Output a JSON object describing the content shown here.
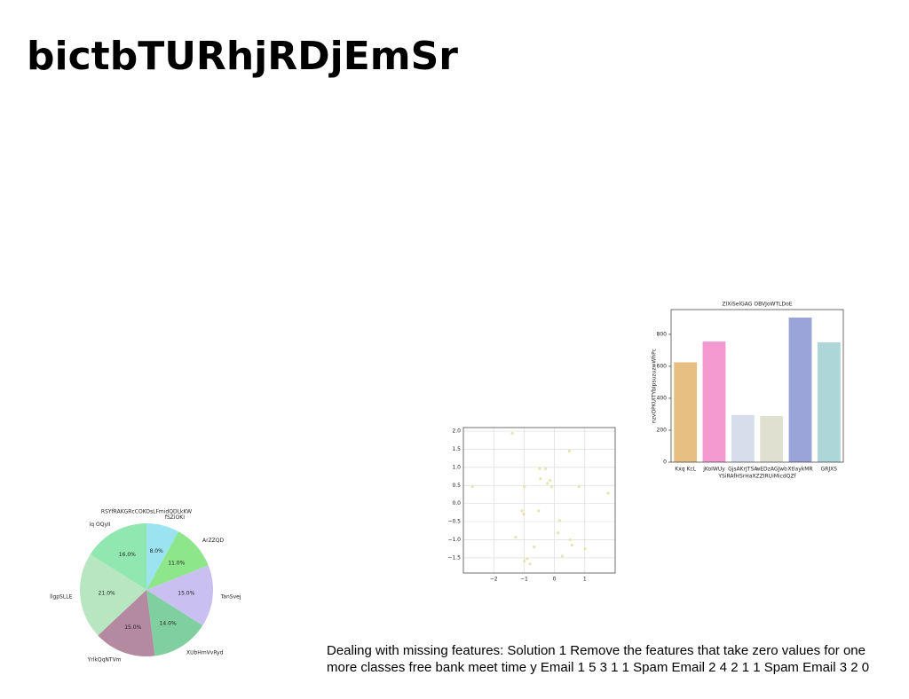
{
  "title": "bictbTURhjRDjEmSr",
  "chart_data": [
    {
      "type": "pie",
      "title": "RSYfRAKGRcCOKOsLFmidQDLkKW",
      "categories": [
        "fSZiOKI",
        "ArZZQD",
        "TanSvej",
        "XUbHmVvRyd",
        "YrlkQqNTVm",
        "llgpSLLE",
        "iq OQyII"
      ],
      "values": [
        8.0,
        11.0,
        15.0,
        14.0,
        15.0,
        21.0,
        16.0
      ],
      "value_labels": [
        "8.0%",
        "11.0%",
        "15.0%",
        "14.0%",
        "15.0%",
        "21.0%",
        "16.0%"
      ],
      "colors": [
        "#9be3f0",
        "#8ee68a",
        "#c9bff0",
        "#80cfa0",
        "#b48aa0",
        "#b8e6c0",
        "#90e8b0"
      ]
    },
    {
      "type": "scatter",
      "color": "#e6e4b0",
      "grid": true,
      "x": [
        -2.7,
        -1.39,
        -0.99,
        -0.49,
        -0.29,
        -0.46,
        -0.23,
        -0.14,
        -0.09,
        0.49,
        0.81,
        1.77,
        -1.07,
        -1.01,
        -0.52,
        0.17,
        -1.28,
        -0.67,
        0.12,
        0.52,
        0.58,
        1.01,
        -0.9,
        -0.81,
        -0.99,
        0.26
      ],
      "y": [
        0.47,
        1.94,
        0.47,
        0.96,
        0.96,
        0.69,
        0.56,
        0.64,
        0.47,
        1.45,
        0.47,
        0.29,
        -0.2,
        -0.29,
        -0.2,
        -0.47,
        -0.93,
        -1.2,
        -0.81,
        -1.0,
        -1.15,
        -1.25,
        -1.52,
        -1.67,
        -1.59,
        -1.45
      ],
      "xlim": [
        -3,
        2
      ],
      "ylim": [
        -1.92,
        2.1
      ],
      "xticks": [
        {
          "value": -2,
          "label": "−2"
        },
        {
          "value": -1,
          "label": "−1"
        },
        0,
        1
      ],
      "yticks": [
        {
          "value": 2.0,
          "label": "2.0"
        },
        {
          "value": 1.5,
          "label": "1.5"
        },
        {
          "value": 1.0,
          "label": "1.0"
        },
        {
          "value": 0.5,
          "label": "0.5"
        },
        {
          "value": 0.0,
          "label": "0.0"
        },
        {
          "value": -0.5,
          "label": "−0.5"
        },
        {
          "value": -1.0,
          "label": "−1.0"
        },
        {
          "value": -1.5,
          "label": "−1.5"
        }
      ]
    },
    {
      "type": "bar",
      "title": "ZlXiSelGAG OBVJoWTLDoE",
      "xlabel": "YSiRAfHSrHaXZZIRUiMicdQZf",
      "ylabel": "nzvOPKUITYbIpsuzuzwWhPc",
      "categories": [
        "Kxq KcL",
        "jKoIWUy",
        "GjsAKrJTSA",
        "wEDzAGJwb",
        "XtlaykMR",
        "GRJXS"
      ],
      "values": [
        625,
        755,
        295,
        288,
        905,
        750
      ],
      "colors": [
        "#e8bf82",
        "#f59ad0",
        "#d5deea",
        "#e0e0d0",
        "#9aa4d8",
        "#acd6d8"
      ],
      "ylim": [
        0,
        955
      ],
      "yticks": [
        0,
        200,
        400,
        600,
        800
      ]
    }
  ],
  "body_lines": [
    "Dealing with missing features: Solution 1 Remove the features that take zero values for one",
    "more classes free bank meet time y Email 1 5 3 1 1 Spam Email 2 4 2 1 1 Spam Email 3 2 0"
  ]
}
